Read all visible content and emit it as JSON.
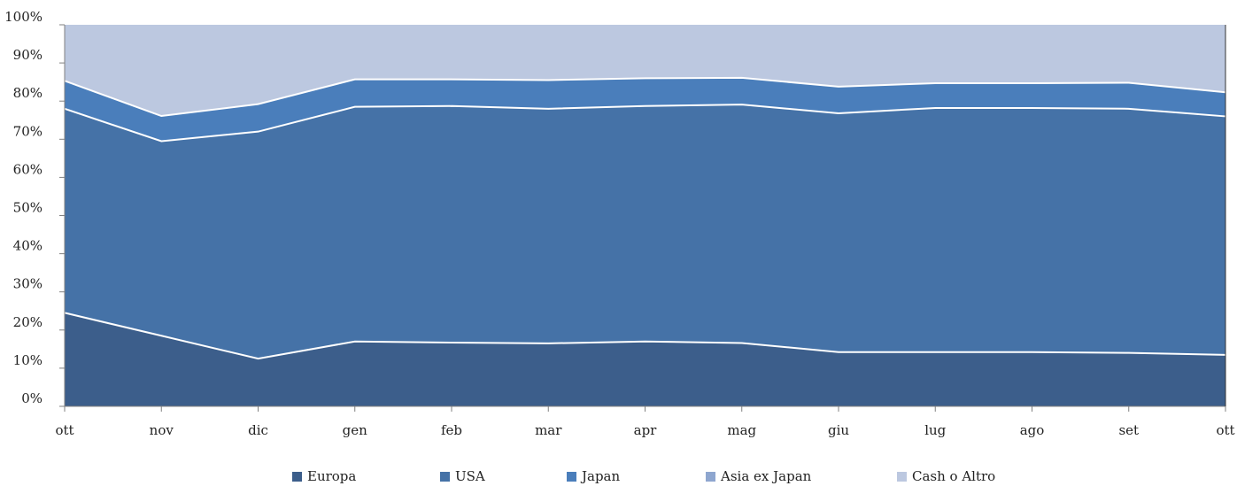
{
  "chart_data": {
    "type": "area",
    "stacked": true,
    "percent": true,
    "categories": [
      "ott",
      "nov",
      "dic",
      "gen",
      "feb",
      "mar",
      "apr",
      "mag",
      "giu",
      "lug",
      "ago",
      "set",
      "ott"
    ],
    "ylim": [
      0,
      100
    ],
    "yticks": [
      "0%",
      "10%",
      "20%",
      "30%",
      "40%",
      "50%",
      "60%",
      "70%",
      "80%",
      "90%",
      "100%"
    ],
    "ytick_values": [
      0,
      10,
      20,
      30,
      40,
      50,
      60,
      70,
      80,
      90,
      100
    ],
    "grid": false,
    "legend_position": "bottom",
    "series": [
      {
        "name": "Europa",
        "color": "#3c5e8b",
        "values": [
          24.5,
          18.5,
          12.5,
          17,
          16.7,
          16.5,
          17,
          16.6,
          14.2,
          14.2,
          14.2,
          14,
          13.5
        ]
      },
      {
        "name": "USA",
        "color": "#4572a7",
        "values": [
          53.5,
          51,
          59.5,
          61.5,
          62,
          61.5,
          61.7,
          62.5,
          62.6,
          64,
          64,
          64,
          62.5
        ]
      },
      {
        "name": "Japan",
        "color": "#4a7ebb",
        "values": [
          7.3,
          6.6,
          7.2,
          7.2,
          7,
          7.5,
          7.3,
          7,
          7,
          6.5,
          6.5,
          6.8,
          6.3
        ]
      },
      {
        "name": "Asia ex Japan",
        "color": "#8ea6cf",
        "values": [
          0,
          0,
          0,
          0,
          0,
          0,
          0,
          0,
          0,
          0,
          0,
          0,
          0
        ]
      },
      {
        "name": "Cash o Altro",
        "color": "#bcc8e0",
        "values": [
          14.7,
          23.9,
          20.8,
          14.3,
          14.3,
          14.5,
          14,
          13.9,
          16.2,
          15.3,
          15.3,
          15.2,
          17.7
        ]
      }
    ]
  }
}
